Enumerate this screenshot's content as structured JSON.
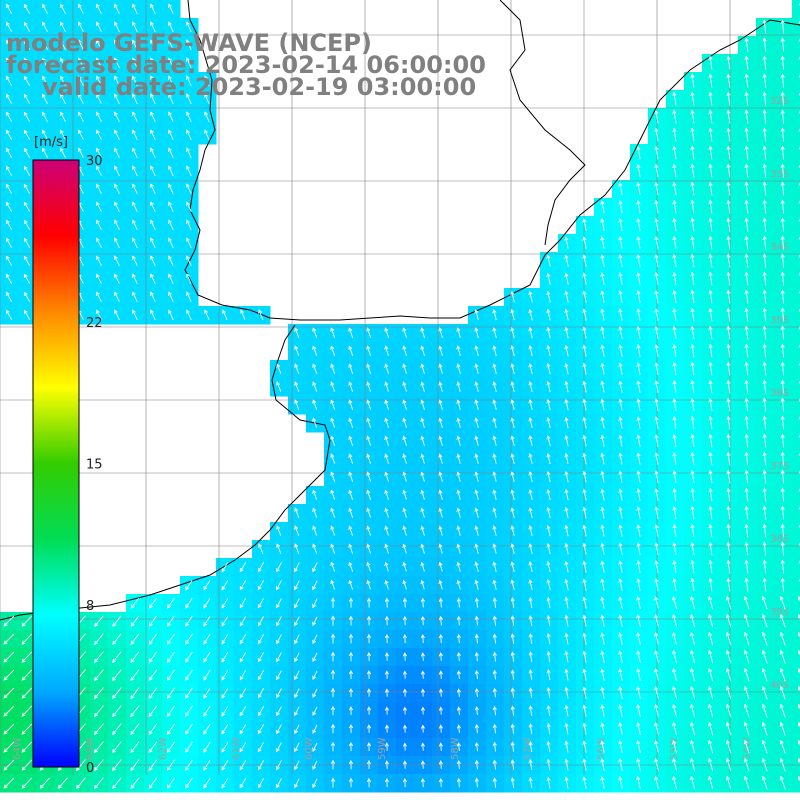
{
  "title": {
    "model": "modelo GEFS-WAVE (NCEP)",
    "forecast": "forecast date: 2023-02-14 06:00:00",
    "valid": "valid date: 2023-02-19 03:00:00"
  },
  "colorbar": {
    "unit": "[m/s]",
    "ticks": [
      "30",
      "22",
      "15",
      "8",
      "0"
    ],
    "tick_values": [
      30,
      22,
      15,
      8,
      0
    ],
    "min": 0,
    "max": 30,
    "colors": [
      "#0000ff",
      "#00aaff",
      "#00ffff",
      "#00dd55",
      "#33cc00",
      "#ffff00",
      "#ff8800",
      "#ff0000",
      "#cc0077"
    ]
  },
  "map": {
    "lat_labels": [
      "32S",
      "33S",
      "34S",
      "35S",
      "36S",
      "37S",
      "38S",
      "39S",
      "40S"
    ],
    "lon_labels": [
      "64W",
      "63W",
      "62W",
      "61W",
      "60W",
      "59W",
      "58W",
      "57W",
      "56W",
      "55W",
      "54W"
    ],
    "ocean_color": "#1e90ff",
    "land_color": "#ffffff",
    "grid_color": "#808080",
    "coast_color": "#000000",
    "arrow_color": "#ffffff"
  }
}
